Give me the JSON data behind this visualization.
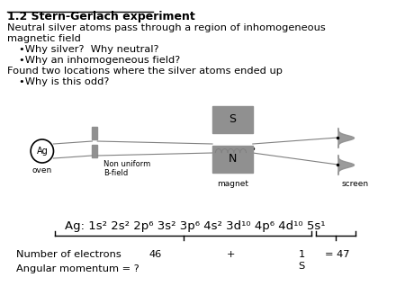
{
  "title": "1.2 Stern-Gerlach experiment",
  "line1": "Neutral silver atoms pass through a region of inhomogeneous",
  "line2": "magnetic field",
  "bullet1": "•Why silver?  Why neutral?",
  "bullet2": "•Why an inhomogeneous field?",
  "line3": "Found two locations where the silver atoms ended up",
  "bullet3": "•Why is this odd?",
  "ag_label": "Ag",
  "oven_label": "oven",
  "nonuniform_label": "Non uniform\nB-field",
  "magnet_label": "magnet",
  "screen_label": "screen",
  "S_label": "S",
  "N_label": "N",
  "config_line": "Ag: 1s² 2s² 2p⁶ 3s² 3p⁶ 4s² 3d¹⁰ 4p⁶ 4d¹⁰ 5s¹",
  "bg_color": "#ffffff",
  "text_color": "#000000",
  "gray_color": "#909090"
}
